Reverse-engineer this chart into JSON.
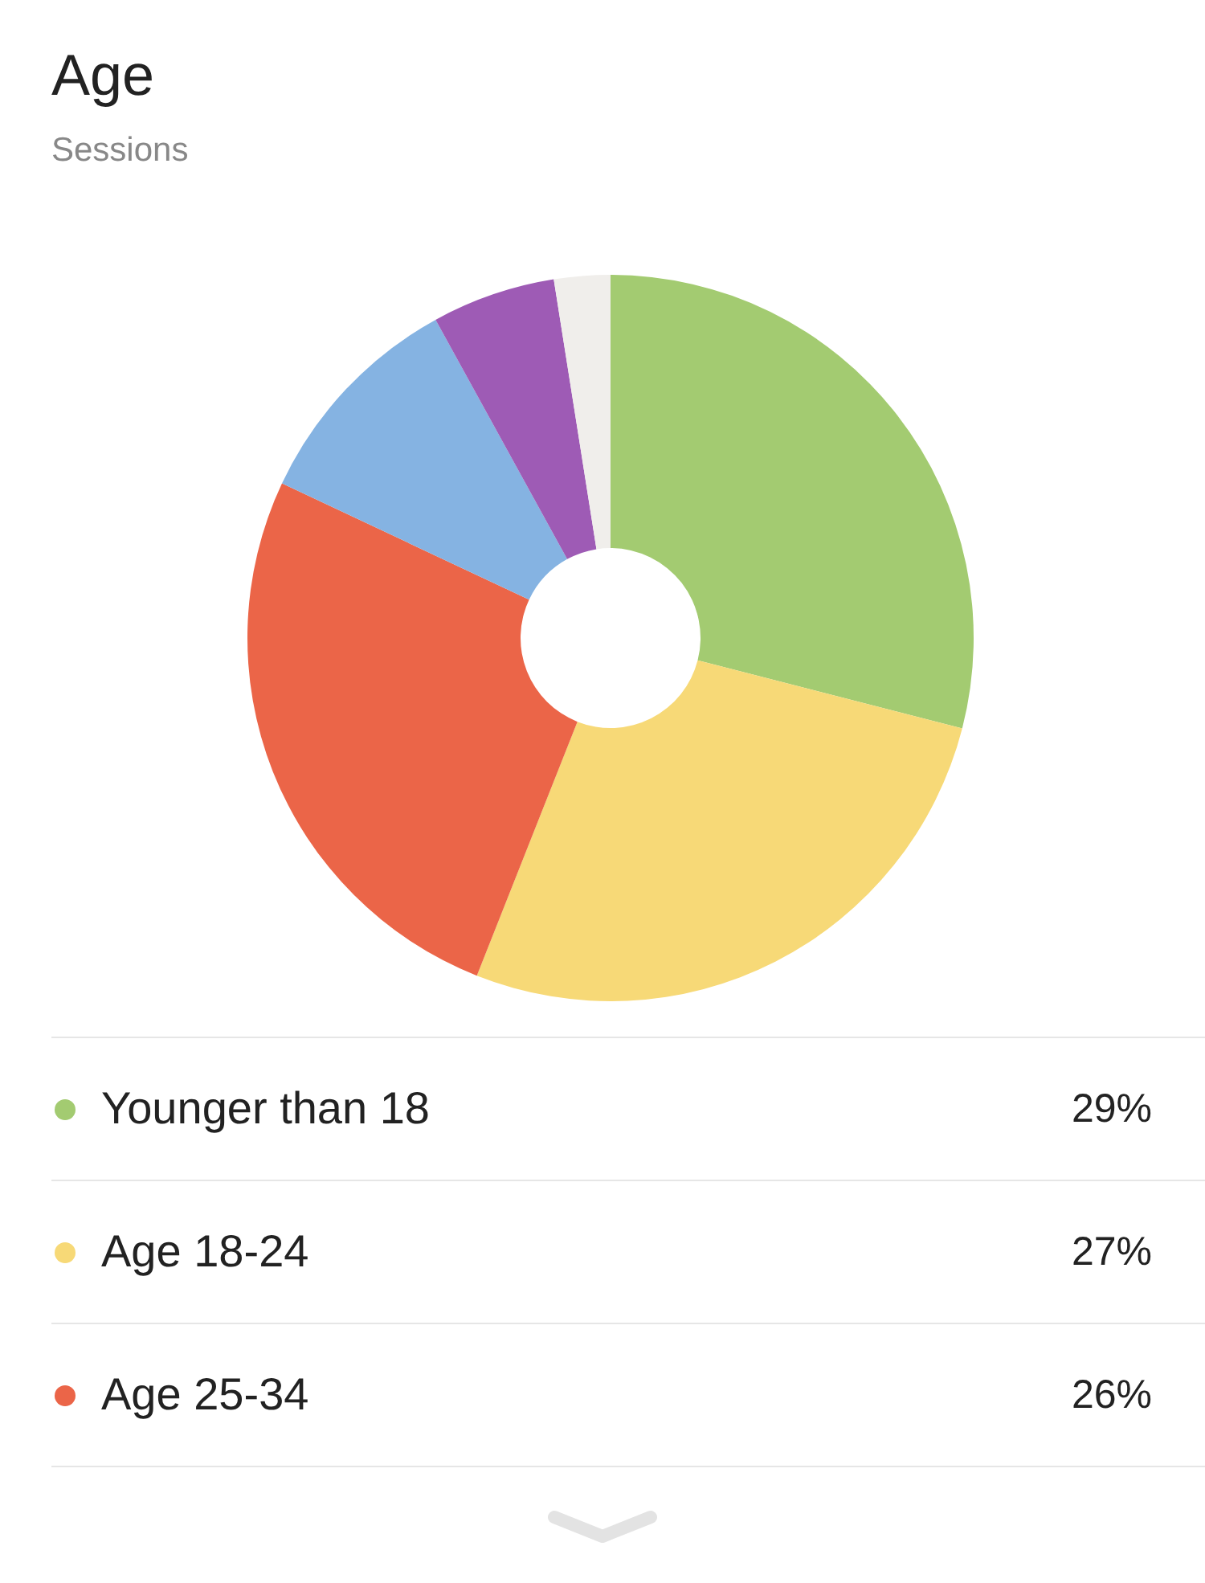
{
  "chart_data": {
    "type": "donut",
    "title": "Age",
    "subtitle": "Sessions",
    "categories": [
      "Younger than 18",
      "Age 18-24",
      "Age 25-34",
      null,
      null,
      null
    ],
    "values": [
      29,
      27,
      26,
      10,
      5.5,
      2.5
    ],
    "colors": [
      "#a3cb71",
      "#f7d977",
      "#eb6548",
      "#85b3e2",
      "#9e5bb5",
      "#f0eeeb"
    ],
    "value_labels": [
      "29%",
      "27%",
      "26%",
      null,
      null,
      null
    ],
    "legend": "bottom"
  }
}
